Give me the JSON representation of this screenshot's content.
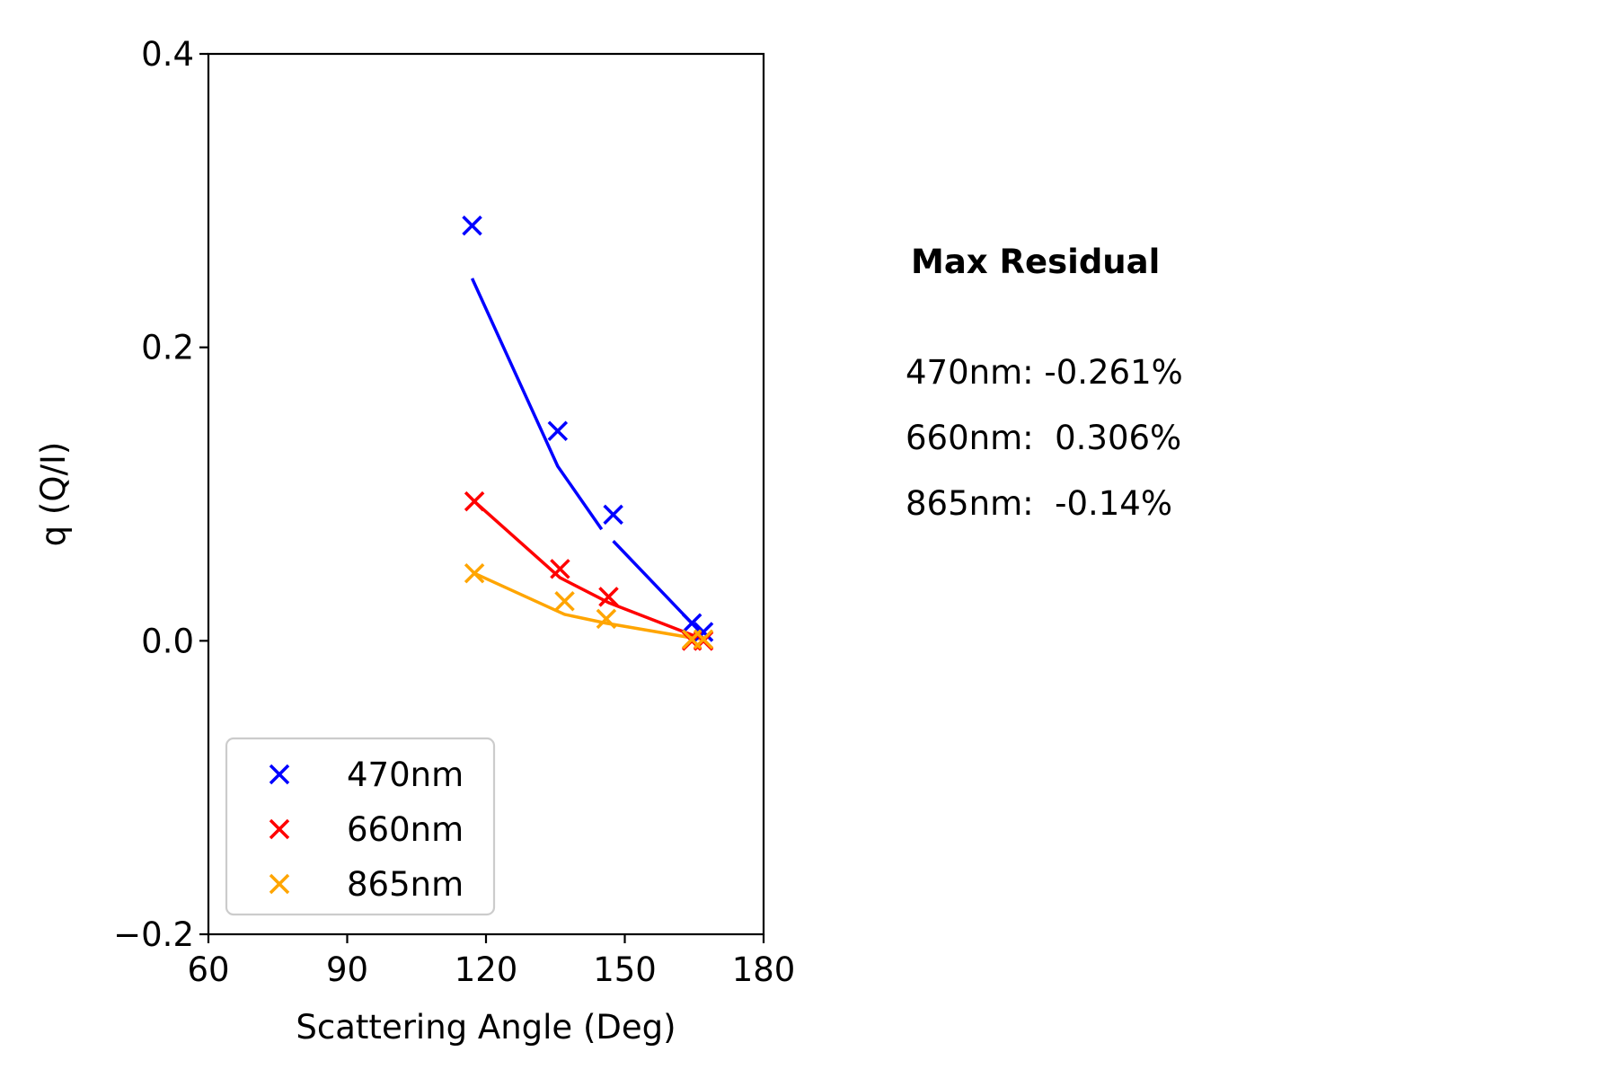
{
  "chart_data": {
    "type": "scatter",
    "xlabel": "Scattering Angle (Deg)",
    "ylabel": "q (Q/I)",
    "xlim": [
      60,
      180
    ],
    "ylim": [
      -0.2,
      0.4
    ],
    "xticks": [
      60,
      90,
      120,
      150,
      180
    ],
    "yticks": [
      -0.2,
      0.0,
      0.2,
      0.4
    ],
    "xtick_labels": [
      "60",
      "90",
      "120",
      "150",
      "180"
    ],
    "ytick_labels": [
      "−0.2",
      "0.0",
      "0.2",
      "0.4"
    ],
    "grid": false,
    "legend_position": "lower-left",
    "series": [
      {
        "name": "470nm",
        "color": "#0000ff",
        "markers": {
          "x": [
            117,
            135.5,
            147.5,
            164.5,
            167
          ],
          "y": [
            0.283,
            0.143,
            0.086,
            0.012,
            0.006
          ]
        },
        "fit": [
          {
            "x": [
              117,
              135.5,
              145
            ],
            "y": [
              0.247,
              0.119,
              0.076
            ]
          },
          {
            "x": [
              147.5,
              164.5,
              167
            ],
            "y": [
              0.068,
              0.012,
              0.004
            ]
          }
        ]
      },
      {
        "name": "660nm",
        "color": "#ff0000",
        "markers": {
          "x": [
            117.5,
            136,
            146.5,
            164.5,
            167
          ],
          "y": [
            0.095,
            0.049,
            0.03,
            0.0,
            0.0
          ]
        },
        "fit": [
          {
            "x": [
              117.5,
              136,
              146.5,
              164.5,
              167
            ],
            "y": [
              0.095,
              0.043,
              0.026,
              0.004,
              0.002
            ]
          }
        ]
      },
      {
        "name": "865nm",
        "color": "#ffa500",
        "markers": {
          "x": [
            117.5,
            137,
            146,
            164.5,
            167
          ],
          "y": [
            0.046,
            0.027,
            0.015,
            0.001,
            0.001
          ]
        },
        "fit": [
          {
            "x": [
              117.5,
              137,
              146,
              164.5,
              167
            ],
            "y": [
              0.046,
              0.018,
              0.012,
              0.002,
              0.001
            ]
          }
        ]
      }
    ]
  },
  "residual_box": {
    "title": "Max Residual",
    "lines": [
      "470nm: -0.261%",
      "660nm:  0.306%",
      "865nm:  -0.14%"
    ]
  }
}
